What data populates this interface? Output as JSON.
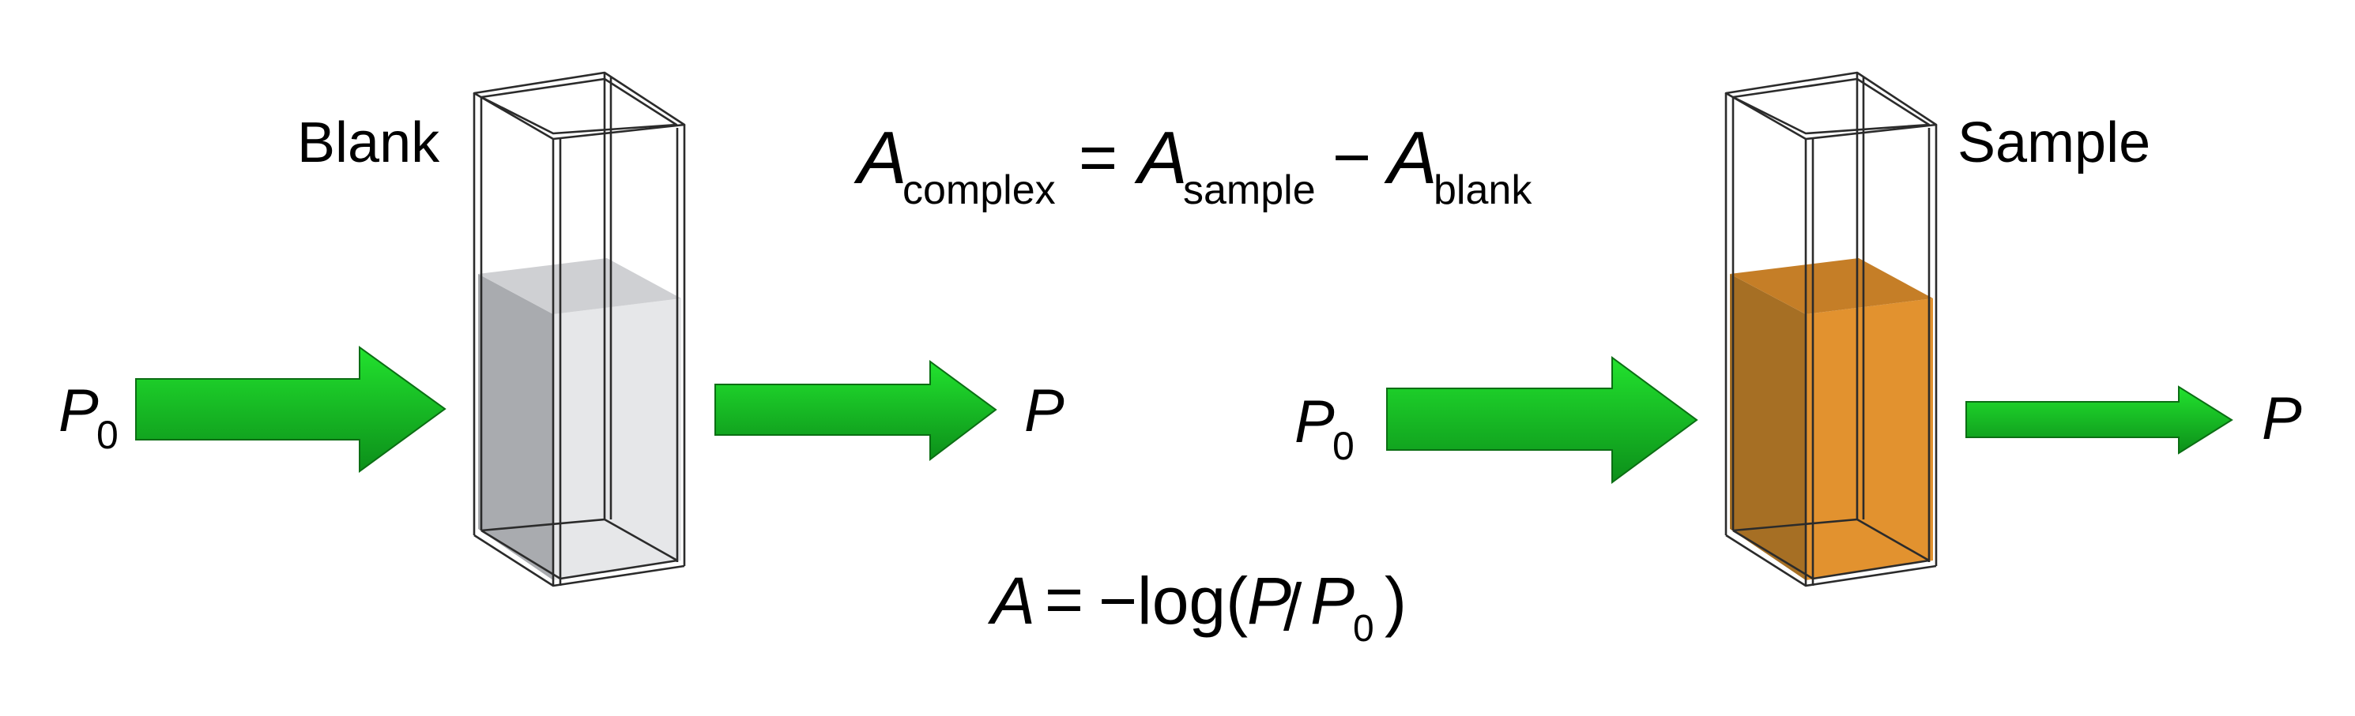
{
  "labels": {
    "blank": "Blank",
    "sample": "Sample"
  },
  "symbols": {
    "p_letter": "P",
    "p0_subscript": "0",
    "a_letter": "A"
  },
  "equation_top": {
    "subscript_complex": "complex",
    "equals": "=",
    "subscript_sample": "sample",
    "minus": "−",
    "subscript_blank": "blank"
  },
  "equation_bottom": {
    "equals": "=",
    "prefix": "−log(",
    "slash": "/",
    "close": ")"
  },
  "colors": {
    "arrow_light": "#22e22e",
    "arrow_dark": "#0c8f1a",
    "blank_liquid_front": "#e6e7e9",
    "blank_liquid_side": "#a9abaf",
    "blank_liquid_top": "#cfd0d3",
    "sample_liquid_front": "#e2922f",
    "sample_liquid_side": "#a66f24",
    "sample_liquid_top": "#c57e27"
  }
}
